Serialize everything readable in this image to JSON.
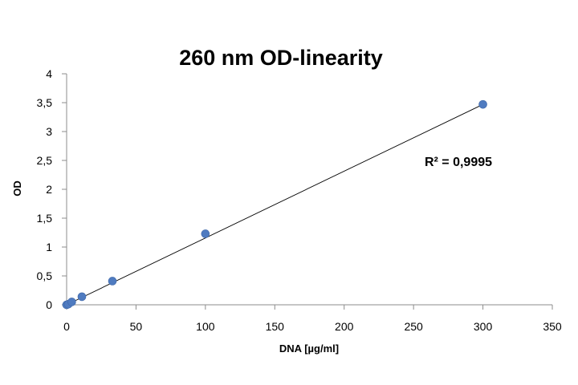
{
  "chart_data": {
    "type": "scatter",
    "title": "260 nm OD-linearity",
    "xlabel": "DNA [µg/ml]",
    "ylabel": "OD",
    "xlim": [
      0,
      350
    ],
    "ylim": [
      0,
      4
    ],
    "x_ticks": [
      0,
      50,
      100,
      150,
      200,
      250,
      300,
      350
    ],
    "y_ticks": [
      0,
      0.5,
      1,
      1.5,
      2,
      2.5,
      3,
      3.5,
      4
    ],
    "x_tick_labels": [
      "0",
      "50",
      "100",
      "150",
      "200",
      "250",
      "300",
      "350"
    ],
    "y_tick_labels": [
      "0",
      "0,5",
      "1",
      "1,5",
      "2",
      "2,5",
      "3",
      "3,5",
      "4"
    ],
    "grid": false,
    "legend": "none",
    "series": [
      {
        "x": [
          0,
          1.2,
          3.7,
          11,
          33,
          100,
          300
        ],
        "y": [
          0,
          0.01,
          0.05,
          0.14,
          0.41,
          1.23,
          3.47
        ],
        "color": "#4f7bc0"
      }
    ],
    "trendline": {
      "type": "linear",
      "from": [
        0,
        0.0
      ],
      "to": [
        300,
        3.47
      ],
      "color": "#000000"
    },
    "annotations": [
      {
        "text": "R² = 0,9995"
      }
    ]
  }
}
